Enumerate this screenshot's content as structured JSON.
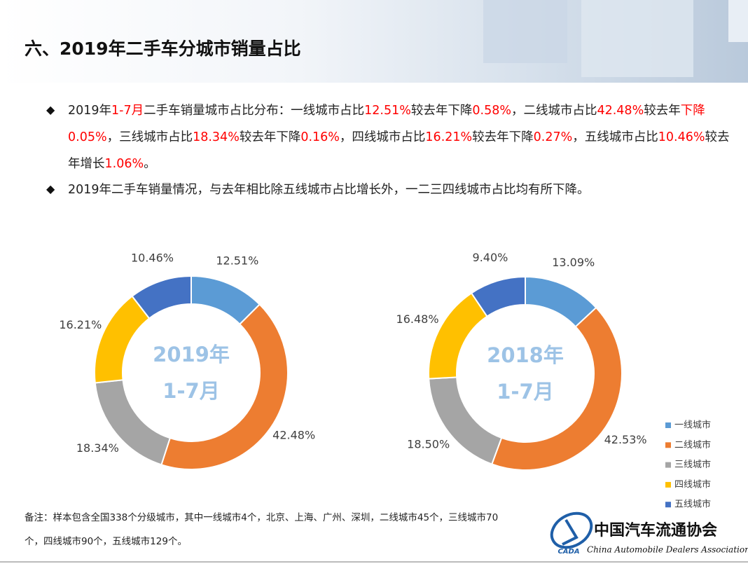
{
  "header": {
    "title": "六、2019年二手车分城市销量占比"
  },
  "bullets": [
    {
      "segments": [
        {
          "text": "2019年"
        },
        {
          "text": "1-7月",
          "color": "#ff0000"
        },
        {
          "text": "二手车销量城市占比分布：一线城市占比"
        },
        {
          "text": "12.51%",
          "color": "#ff0000"
        },
        {
          "text": "较去年下降"
        },
        {
          "text": "0.58%",
          "color": "#ff0000"
        },
        {
          "text": "，二线城市占比"
        },
        {
          "text": "42.48%",
          "color": "#ff0000"
        },
        {
          "text": "较去年"
        },
        {
          "text": "下降0.05%",
          "color": "#ff0000"
        },
        {
          "text": "，三线城市占比"
        },
        {
          "text": "18.34%",
          "color": "#ff0000"
        },
        {
          "text": "较去年下降"
        },
        {
          "text": "0.16%",
          "color": "#ff0000"
        },
        {
          "text": "，四线城市占比"
        },
        {
          "text": "16.21%",
          "color": "#ff0000"
        },
        {
          "text": "较去年下降"
        },
        {
          "text": "0.27%",
          "color": "#ff0000"
        },
        {
          "text": "，五线城市占比"
        },
        {
          "text": "10.46%",
          "color": "#ff0000"
        },
        {
          "text": "较去年增长"
        },
        {
          "text": "1.06%",
          "color": "#ff0000"
        },
        {
          "text": "。"
        }
      ]
    },
    {
      "segments": [
        {
          "text": "2019年二手车销量情况，与去年相比除五线城市占比增长外，一二三四线城市占比均有所下降。"
        }
      ]
    }
  ],
  "chart_data": [
    {
      "type": "donut",
      "center_label": [
        "2019年",
        "1-7月"
      ],
      "categories": [
        "一线城市",
        "二线城市",
        "三线城市",
        "四线城市",
        "五线城市"
      ],
      "values": [
        12.51,
        42.48,
        18.34,
        16.21,
        10.46
      ],
      "value_labels": [
        "12.51%",
        "42.48%",
        "18.34%",
        "16.21%",
        "10.46%"
      ],
      "colors": [
        "#5b9bd5",
        "#ed7d31",
        "#a5a5a5",
        "#ffc000",
        "#4472c4"
      ]
    },
    {
      "type": "donut",
      "center_label": [
        "2018年",
        "1-7月"
      ],
      "categories": [
        "一线城市",
        "二线城市",
        "三线城市",
        "四线城市",
        "五线城市"
      ],
      "values": [
        13.09,
        42.53,
        18.5,
        16.48,
        9.4
      ],
      "value_labels": [
        "13.09%",
        "42.53%",
        "18.50%",
        "16.48%",
        "9.40%"
      ],
      "colors": [
        "#5b9bd5",
        "#ed7d31",
        "#a5a5a5",
        "#ffc000",
        "#4472c4"
      ],
      "legend": "right"
    }
  ],
  "note": "备注：样本包含全国338个分级城市，其中一线城市4个，北京、上海、广州、深圳，二线城市45个，三线城市70个，四线城市90个，五线城市129个。",
  "logo": {
    "name_cn": "中国汽车流通协会",
    "name_en": "China Automobile Dealers Association",
    "abbr": "CADA"
  }
}
